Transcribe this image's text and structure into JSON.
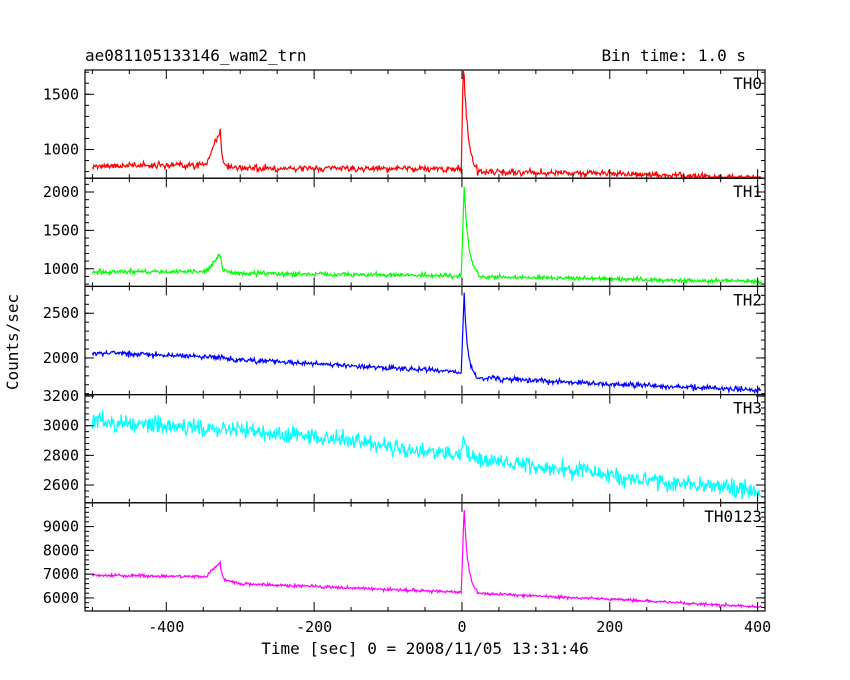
{
  "header": {
    "title": "ae081105133146_wam2_trn",
    "bin_time": "Bin time: 1.0 s"
  },
  "colors": {
    "TH0": "#ff0000",
    "TH1": "#00ff00",
    "TH2": "#0000ff",
    "TH3": "#00ffff",
    "TH0123": "#ff00ff"
  },
  "chart_data": {
    "type": "line",
    "xlabel": "Time [sec] 0 = 2008/11/05 13:31:46",
    "ylabel": "Counts/sec",
    "xlim": [
      -510,
      410
    ],
    "xticks": [
      -400,
      -200,
      0,
      200,
      400
    ],
    "panels": [
      {
        "name": "TH0",
        "ylim": [
          740,
          1720
        ],
        "yticks": [
          1000,
          1500
        ],
        "baseline": [
          [
            -500,
            850
          ],
          [
            -340,
            860
          ],
          [
            -300,
            830
          ],
          [
            -5,
            820
          ],
          [
            20,
            800
          ],
          [
            200,
            780
          ],
          [
            400,
            740
          ]
        ],
        "noise": 28,
        "features": [
          {
            "type": "bump",
            "start": -345,
            "peak": -327,
            "end": -320,
            "height": 320
          },
          {
            "type": "burst",
            "start": 0,
            "peak": 2,
            "end": 20,
            "height": 1000
          }
        ]
      },
      {
        "name": "TH1",
        "ylim": [
          770,
          2180
        ],
        "yticks": [
          1000,
          1500,
          2000
        ],
        "baseline": [
          [
            -500,
            960
          ],
          [
            -340,
            970
          ],
          [
            -300,
            940
          ],
          [
            -5,
            910
          ],
          [
            20,
            895
          ],
          [
            200,
            870
          ],
          [
            400,
            830
          ]
        ],
        "noise": 28,
        "features": [
          {
            "type": "bump",
            "start": -345,
            "peak": -327,
            "end": -320,
            "height": 230
          },
          {
            "type": "burst",
            "start": 0,
            "peak": 3,
            "end": 22,
            "height": 1150
          }
        ]
      },
      {
        "name": "TH2",
        "ylim": [
          1590,
          2800
        ],
        "yticks": [
          2000,
          2500
        ],
        "baseline": [
          [
            -500,
            2060
          ],
          [
            -325,
            2010
          ],
          [
            -323,
            1990
          ],
          [
            -10,
            1850
          ],
          [
            15,
            1780
          ],
          [
            200,
            1710
          ],
          [
            400,
            1640
          ]
        ],
        "noise": 28,
        "features": [
          {
            "type": "burst",
            "start": 0,
            "peak": 3,
            "end": 18,
            "height": 880
          }
        ]
      },
      {
        "name": "TH3",
        "ylim": [
          2480,
          3210
        ],
        "yticks": [
          2600,
          2800,
          3000,
          3200
        ],
        "baseline": [
          [
            -500,
            3030
          ],
          [
            -200,
            2930
          ],
          [
            0,
            2790
          ],
          [
            200,
            2660
          ],
          [
            400,
            2550
          ]
        ],
        "noise": 55,
        "features": [
          {
            "type": "burst",
            "start": 0,
            "peak": 2,
            "end": 12,
            "height": 150
          }
        ]
      },
      {
        "name": "TH0123",
        "ylim": [
          5450,
          10000
        ],
        "yticks": [
          6000,
          7000,
          8000,
          9000
        ],
        "baseline": [
          [
            -500,
            6950
          ],
          [
            -340,
            6900
          ],
          [
            -300,
            6600
          ],
          [
            -5,
            6250
          ],
          [
            20,
            6200
          ],
          [
            200,
            5950
          ],
          [
            400,
            5620
          ]
        ],
        "noise": 60,
        "features": [
          {
            "type": "bump",
            "start": -345,
            "peak": -327,
            "end": -320,
            "height": 700
          },
          {
            "type": "burst",
            "start": 0,
            "peak": 3,
            "end": 20,
            "height": 3500
          }
        ]
      }
    ]
  }
}
